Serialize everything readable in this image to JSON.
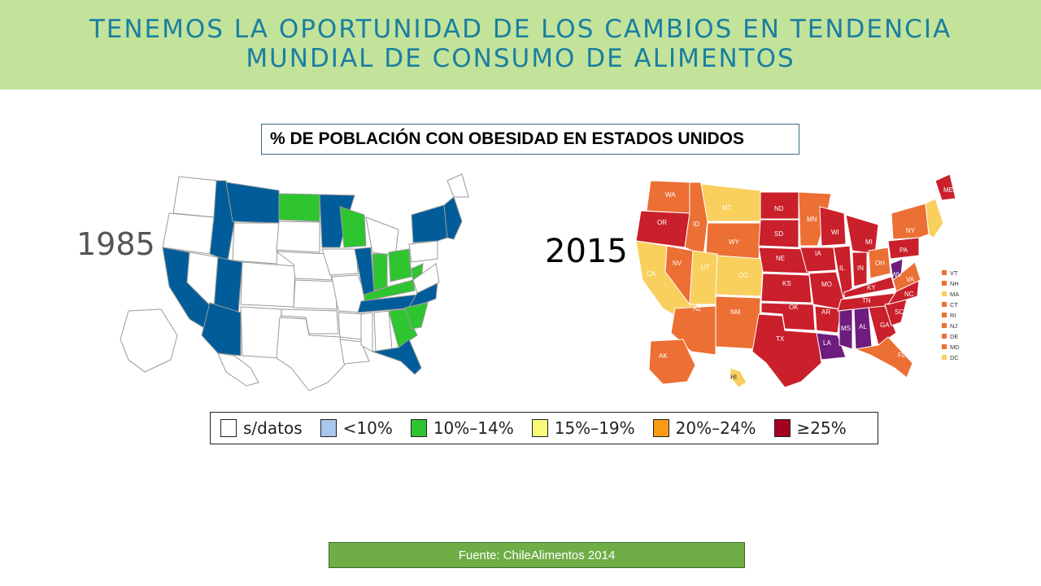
{
  "header": {
    "title_line1": "TENEMOS LA OPORTUNIDAD DE LOS CAMBIOS EN TENDENCIA",
    "title_line2": "MUNDIAL DE CONSUMO DE ALIMENTOS"
  },
  "subtitle": "% DE POBLACIÓN CON OBESIDAD EN ESTADOS UNIDOS",
  "maps": [
    {
      "year": "1985"
    },
    {
      "year": "2015",
      "state_labels": [
        "WA",
        "OR",
        "CA",
        "ID",
        "NV",
        "MT",
        "WY",
        "UT",
        "CO",
        "AZ",
        "NM",
        "ND",
        "SD",
        "NE",
        "KS",
        "OK",
        "TX",
        "MN",
        "IA",
        "MO",
        "AR",
        "LA",
        "WI",
        "IL",
        "MS",
        "MI",
        "IN",
        "KY",
        "TN",
        "AL",
        "OH",
        "WV",
        "GA",
        "FL",
        "NC",
        "SC",
        "VA",
        "PA",
        "NY",
        "ME",
        "AK",
        "HI"
      ],
      "side_labels": [
        "VT",
        "NH",
        "MA",
        "CT",
        "RI",
        "NJ",
        "DE",
        "MD",
        "DC"
      ]
    }
  ],
  "legend": [
    {
      "label": "s/datos",
      "color": "#ffffff"
    },
    {
      "label": "<10%",
      "color": "#a9c6ec"
    },
    {
      "label": "10%–14%",
      "color": "#2ec531"
    },
    {
      "label": "15%–19%",
      "color": "#fafa7a"
    },
    {
      "label": "20%–24%",
      "color": "#fb9a14"
    },
    {
      "label": "≥25%",
      "color": "#a30022"
    }
  ],
  "colors": {
    "map1985_blue": "#005d9a",
    "map1985_green": "#2ec531",
    "map2015_red": "#c9202b",
    "map2015_orange": "#ec6f34",
    "map2015_yellow": "#f9cf5e",
    "map2015_purple": "#6e1c7d"
  },
  "source": "Fuente: ChileAlimentos 2014"
}
